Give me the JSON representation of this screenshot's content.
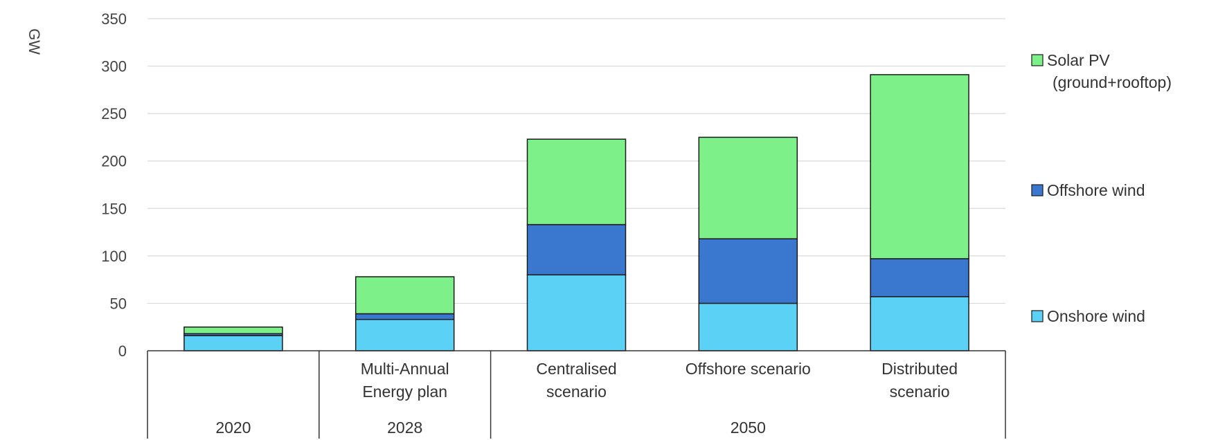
{
  "chart_data": {
    "type": "bar",
    "stacked": true,
    "ylabel": "GW",
    "ylim": [
      0,
      350
    ],
    "yticks": [
      0,
      50,
      100,
      150,
      200,
      250,
      300,
      350
    ],
    "grid": true,
    "legend_position": "right",
    "categories": [
      "",
      "Multi-Annual\nEnergy plan",
      "Centralised\nscenario",
      "Offshore scenario",
      "Distributed\nscenario"
    ],
    "groups": [
      {
        "label": "2020",
        "categories": [
          0
        ]
      },
      {
        "label": "2028",
        "categories": [
          1
        ]
      },
      {
        "label": "2050",
        "categories": [
          2,
          3,
          4
        ]
      }
    ],
    "series": [
      {
        "name": "Onshore wind",
        "color": "#5bd2f5",
        "values": [
          16,
          33,
          80,
          50,
          57
        ]
      },
      {
        "name": "Offshore wind",
        "color": "#3a78cf",
        "values": [
          2,
          6,
          53,
          68,
          40
        ]
      },
      {
        "name": "Solar PV\n(ground+rooftop)",
        "color": "#7ef08a",
        "values": [
          7,
          39,
          90,
          107,
          194
        ]
      }
    ],
    "legend_order": [
      2,
      1,
      0
    ]
  }
}
